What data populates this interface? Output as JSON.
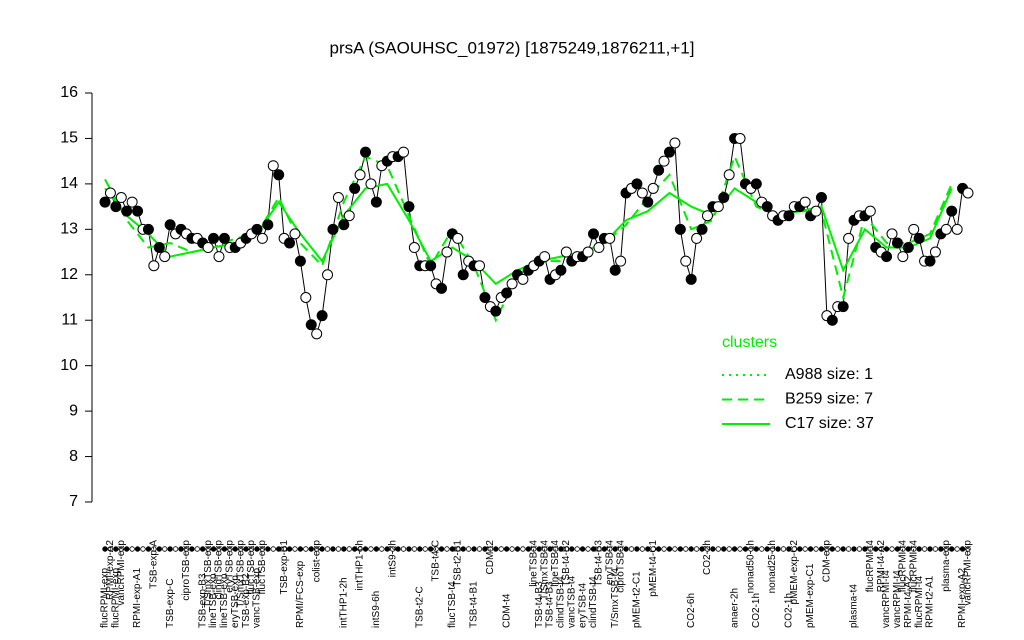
{
  "chart_data": {
    "type": "line",
    "title": "prsA (SAOUHSC_01972) [1875249,1876211,+1]",
    "ylim": [
      7,
      16
    ],
    "yticks": [
      7,
      8,
      9,
      10,
      11,
      12,
      13,
      14,
      15,
      16
    ],
    "legend_title": "clusters",
    "legend_position": "right",
    "categories": [
      "flucRPMI-exp",
      "RPMI-exp-A2",
      "flucRPMI-exp",
      "vancRPMI-exp",
      null,
      null,
      "RPMI-exp-A1",
      null,
      null,
      "TSB-exp-A",
      null,
      null,
      "TSB-exp-C",
      null,
      null,
      "ciproTSB-exp",
      null,
      null,
      "TSB-exp-B3",
      "T/SmxTSB-exp",
      "lineTSB-exp",
      "clindTSB-exp",
      "lineTSB-exp",
      "eryTSB-exp",
      "eryTSB-exp",
      "T/SmxTSB-exp",
      "TSB-exp-B2",
      "flucTSB-exp",
      "vancTSB-exp",
      "flucTSB-exp",
      null,
      null,
      null,
      "TSB-exp-B1",
      null,
      null,
      "RPMI/FCS-exp",
      null,
      null,
      "colist-exp",
      null,
      null,
      null,
      null,
      "intTHP1-2h",
      null,
      null,
      "intTHP1-6h",
      null,
      null,
      "intS9-6h",
      null,
      null,
      "intS9-2h",
      null,
      null,
      null,
      null,
      "TSB-t2-C",
      null,
      null,
      "TSB-t4-C",
      null,
      null,
      "flucTSB-t4",
      "TSB-t2-B1",
      null,
      null,
      "TSB-t4-B1",
      null,
      null,
      "CDM-t2",
      null,
      null,
      "CDM-t4",
      null,
      null,
      null,
      null,
      "lineTSB-t4",
      "TSB-t4-B3",
      "T/SmxTSB-t4",
      "TSB-t4-B3",
      "lineTSB-t4",
      "clindTSB-t4",
      "TSB-t4-B2",
      "vancTSB-t4",
      null,
      "eryTSB-t4",
      null,
      "clindTSB-t4",
      "TSB-t4-B3",
      null,
      "eryTSB-t4",
      "T/SmxTSB-t4",
      "ciproTSB-t4",
      null,
      null,
      "pMEM-t2-C1",
      null,
      null,
      "pMEM-t4-C1",
      null,
      null,
      null,
      null,
      null,
      null,
      "CO2-6h",
      null,
      null,
      "CO2-2h",
      null,
      null,
      null,
      null,
      "anaer-2h",
      null,
      null,
      "nonad50-1h",
      "CO2-1h",
      null,
      null,
      "nonad25-1h",
      null,
      null,
      "CO2-1h",
      "pMEM-exp-C2",
      null,
      null,
      "pMEM-exp-C1",
      null,
      null,
      "CDM-exp",
      null,
      null,
      null,
      null,
      "plasma-t4",
      null,
      null,
      "flucRPMI-t4",
      null,
      "RPMI-t4-A2",
      "vancRPMI-t4",
      null,
      "vancRPMI-t4",
      "flucRPMI-t4",
      "RPMI-t4-A2",
      "flucRPMI-t4",
      "flucRPMI-t4",
      null,
      "RPMI-t2-A1",
      null,
      null,
      "plasma-exp",
      null,
      null,
      "RPMI-exp-A2",
      "vancRPMI-exp"
    ],
    "series": [
      {
        "color": "#000000",
        "values": [
          13.6,
          13.8,
          13.5,
          13.7,
          13.4,
          13.6,
          13.4,
          13.0,
          13.0,
          12.2,
          12.6,
          12.4,
          13.1,
          12.9,
          13.0,
          12.9,
          12.8,
          12.8,
          12.7,
          12.6,
          12.8,
          12.4,
          12.8,
          12.6,
          12.6,
          12.7,
          12.8,
          12.9,
          13.0,
          12.8,
          13.1,
          14.4,
          14.2,
          12.8,
          12.7,
          12.9,
          12.3,
          11.5,
          10.9,
          10.7,
          11.1,
          12.0,
          13.0,
          13.7,
          13.1,
          13.3,
          13.9,
          14.2,
          14.7,
          14.0,
          13.6,
          14.4,
          14.5,
          14.6,
          14.6,
          14.7,
          13.5,
          12.6,
          12.2,
          12.2,
          12.2,
          11.8,
          11.7,
          12.5,
          12.9,
          12.8,
          12.0,
          12.3,
          12.2,
          12.2,
          11.5,
          11.3,
          11.2,
          11.5,
          11.6,
          11.8,
          12.0,
          11.9,
          12.1,
          12.2,
          12.3,
          12.4,
          11.9,
          12.0,
          12.1,
          12.5,
          12.3,
          12.4,
          12.4,
          12.5,
          12.9,
          12.6,
          12.8,
          12.8,
          12.1,
          12.3,
          13.8,
          13.9,
          14.0,
          13.8,
          13.6,
          13.9,
          14.3,
          14.5,
          14.7,
          14.9,
          13.0,
          12.3,
          11.9,
          12.8,
          13.0,
          13.3,
          13.5,
          13.5,
          13.7,
          14.2,
          15.0,
          15.0,
          14.0,
          13.9,
          14.0,
          13.6,
          13.5,
          13.3,
          13.2,
          13.3,
          13.3,
          13.5,
          13.5,
          13.6,
          13.3,
          13.4,
          13.7,
          11.1,
          11.0,
          11.3,
          11.3,
          12.8,
          13.2,
          13.3,
          13.3,
          13.4,
          12.6,
          12.5,
          12.4,
          12.9,
          12.7,
          12.4,
          12.6,
          13.0,
          12.8,
          12.3,
          12.3,
          12.5,
          12.9,
          13.0,
          13.4,
          13.0,
          13.9,
          13.8
        ]
      },
      {
        "name": "A988 size: 1",
        "color": "#00ee00",
        "linestyle": "dotted"
      },
      {
        "name": "B259 size: 7",
        "color": "#00ee00",
        "linestyle": "dashed",
        "x": [
          0,
          4,
          8,
          12,
          16,
          20,
          24,
          28,
          32,
          36,
          40,
          44,
          48,
          52,
          56,
          60,
          64,
          68,
          72,
          76,
          80,
          84,
          88,
          92,
          96,
          100,
          104,
          108,
          112,
          116,
          120,
          124,
          128,
          132,
          136,
          140,
          144,
          148,
          152,
          156
        ],
        "values": [
          14.1,
          13.2,
          12.6,
          12.7,
          12.5,
          12.6,
          12.8,
          12.9,
          13.7,
          12.7,
          12.2,
          13.6,
          14.6,
          14.4,
          13.3,
          12.2,
          13.0,
          12.2,
          11.0,
          12.0,
          12.3,
          12.3,
          12.4,
          12.7,
          13.1,
          13.7,
          14.2,
          13.0,
          13.2,
          14.6,
          13.5,
          13.3,
          13.4,
          13.4,
          11.5,
          13.3,
          12.7,
          12.7,
          12.9,
          14.0
        ]
      },
      {
        "name": "C17 size: 37",
        "color": "#00ee00",
        "linestyle": "solid",
        "x": [
          0,
          4,
          8,
          12,
          16,
          20,
          24,
          28,
          32,
          36,
          40,
          44,
          48,
          52,
          56,
          60,
          64,
          68,
          72,
          76,
          80,
          84,
          88,
          92,
          96,
          100,
          104,
          108,
          112,
          116,
          120,
          124,
          128,
          132,
          136,
          140,
          144,
          148,
          152,
          156
        ],
        "values": [
          13.9,
          13.3,
          12.9,
          12.4,
          12.5,
          12.6,
          12.7,
          12.9,
          13.6,
          12.9,
          12.3,
          13.3,
          13.9,
          14.0,
          13.2,
          12.3,
          12.6,
          12.3,
          11.8,
          12.1,
          12.3,
          12.4,
          12.5,
          12.7,
          13.2,
          13.4,
          13.8,
          13.5,
          13.3,
          13.9,
          13.6,
          13.3,
          13.4,
          13.5,
          12.1,
          13.0,
          12.6,
          12.6,
          12.8,
          13.9
        ]
      }
    ]
  }
}
